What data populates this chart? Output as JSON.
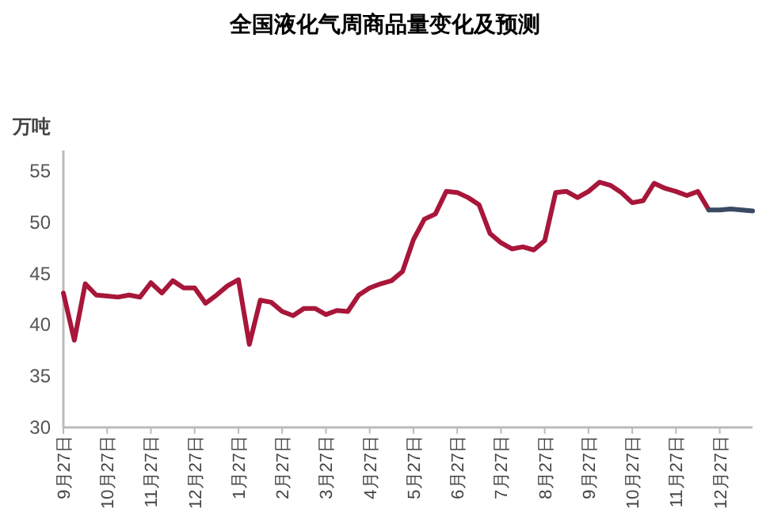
{
  "chart_data": {
    "type": "line",
    "title": "全国液化气周商品量变化及预测",
    "ylabel": "万吨",
    "ylim": [
      30,
      57
    ],
    "yticks": [
      30,
      35,
      40,
      45,
      50,
      55
    ],
    "categories": [
      "9月27日",
      null,
      null,
      null,
      "10月27日",
      null,
      null,
      null,
      "11月27日",
      null,
      null,
      null,
      "12月27日",
      null,
      null,
      null,
      "1月27日",
      null,
      null,
      null,
      "2月27日",
      null,
      null,
      null,
      "3月27日",
      null,
      null,
      null,
      "4月27日",
      null,
      null,
      null,
      "5月27日",
      null,
      null,
      null,
      "6月27日",
      null,
      null,
      null,
      "7月27日",
      null,
      null,
      null,
      "8月27日",
      null,
      null,
      null,
      "9月27日",
      null,
      null,
      null,
      "10月27日",
      null,
      null,
      null,
      "11月27日",
      null,
      null,
      null,
      "12月27日",
      null,
      null,
      null
    ],
    "grid": false,
    "marker": "none",
    "line_style": "solid",
    "series": [
      {
        "color": "#a8163a",
        "values": [
          43.1,
          38.5,
          44.0,
          42.9,
          42.8,
          42.7,
          42.9,
          42.7,
          44.1,
          43.1,
          44.3,
          43.6,
          43.6,
          42.1,
          42.9,
          43.8,
          44.4,
          38.1,
          42.4,
          42.2,
          41.3,
          40.9,
          41.6,
          41.6,
          41.0,
          41.4,
          41.3,
          42.9,
          43.6,
          44.0,
          44.3,
          45.2,
          48.3,
          50.3,
          50.8,
          53.0,
          52.9,
          52.4,
          51.7,
          48.9,
          48.0,
          47.4,
          47.6,
          47.3,
          48.2,
          52.9,
          53.0,
          52.4,
          53.0,
          53.9,
          53.6,
          52.9,
          51.9,
          52.1,
          53.8,
          53.3,
          53.0,
          52.6,
          53.0,
          51.2,
          null,
          null,
          null,
          null
        ]
      },
      {
        "color": "#3b4a63",
        "values": [
          null,
          null,
          null,
          null,
          null,
          null,
          null,
          null,
          null,
          null,
          null,
          null,
          null,
          null,
          null,
          null,
          null,
          null,
          null,
          null,
          null,
          null,
          null,
          null,
          null,
          null,
          null,
          null,
          null,
          null,
          null,
          null,
          null,
          null,
          null,
          null,
          null,
          null,
          null,
          null,
          null,
          null,
          null,
          null,
          null,
          null,
          null,
          null,
          null,
          null,
          null,
          null,
          null,
          null,
          null,
          null,
          null,
          null,
          null,
          51.2,
          51.2,
          51.3,
          51.2,
          51.1
        ]
      }
    ]
  }
}
